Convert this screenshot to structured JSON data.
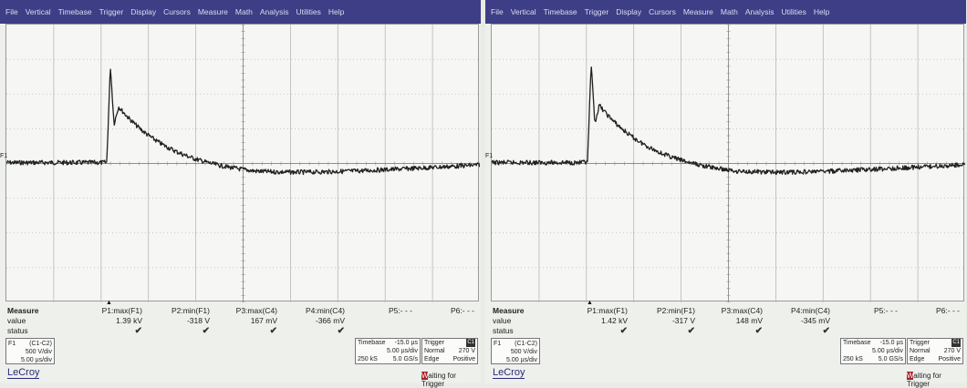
{
  "colors": {
    "menubar": "#3e3e86",
    "trace": "#1f221f",
    "grid": "#b7bab5",
    "status_highlight": "#a61d24"
  },
  "menu": [
    "File",
    "Vertical",
    "Timebase",
    "Trigger",
    "Display",
    "Cursors",
    "Measure",
    "Math",
    "Analysis",
    "Utilities",
    "Help"
  ],
  "trace_label": "F1",
  "measure": {
    "title": "Measure",
    "row_value": "value",
    "row_status": "status",
    "headers": [
      "P1:max(F1)",
      "P2:min(F1)",
      "P3:max(C4)",
      "P4:min(C4)",
      "P5:- - -",
      "P6:- - -"
    ]
  },
  "channel": {
    "name": "F1",
    "source": "(C1-C2)",
    "vdiv": "500 V/div",
    "tdiv": "5.00 µs/div"
  },
  "timebase": {
    "label": "Timebase",
    "delay": "-15.0 µs",
    "per_div": "5.00 µs/div",
    "samples": "250 kS",
    "rate": "5.0 GS/s"
  },
  "trigger": {
    "label": "Trigger",
    "channel": "C1",
    "mode": "Normal",
    "level": "270 V",
    "type": "Edge",
    "slope": "Positive"
  },
  "status": {
    "first_letter": "W",
    "rest": "aiting for Trigger"
  },
  "logo": "LeCroy",
  "screens": [
    {
      "values": [
        "1.39 kV",
        "-318 V",
        "167 mV",
        "-366 mV"
      ],
      "peak": 1.39
    },
    {
      "values": [
        "1.42 kV",
        "-317 V",
        "148 mV",
        "-345 mV"
      ],
      "peak": 1.42
    }
  ]
}
